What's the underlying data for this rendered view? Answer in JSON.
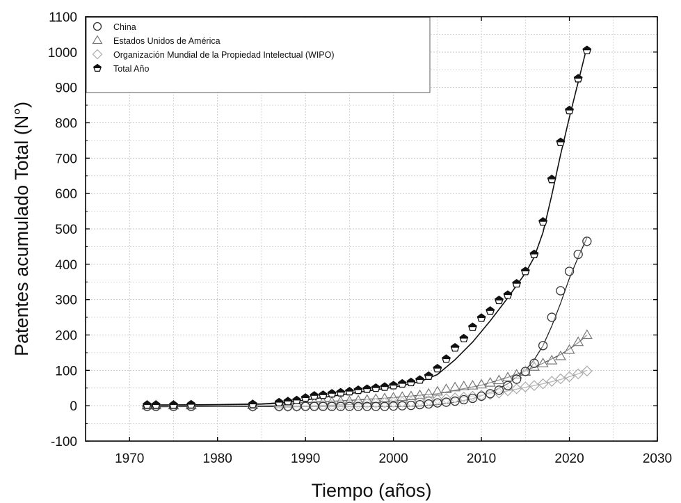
{
  "chart_data": {
    "type": "scatter",
    "xlabel": "Tiempo (años)",
    "ylabel": "Patentes acumulado Total (N°)",
    "xlim": [
      1965,
      2030
    ],
    "ylim": [
      -100,
      1100
    ],
    "xticks": [
      1970,
      1980,
      1990,
      2000,
      2010,
      2020,
      2030
    ],
    "yticks": [
      -100,
      0,
      100,
      200,
      300,
      400,
      500,
      600,
      700,
      800,
      900,
      1000,
      1100
    ],
    "grid": true,
    "legend_position": "top-left",
    "series": [
      {
        "name": "China",
        "marker": "circle",
        "x": [
          1972,
          1973,
          1975,
          1977,
          1984,
          1987,
          1988,
          1989,
          1990,
          1991,
          1992,
          1993,
          1994,
          1995,
          1996,
          1997,
          1998,
          1999,
          2000,
          2001,
          2002,
          2003,
          2004,
          2005,
          2006,
          2007,
          2008,
          2009,
          2010,
          2011,
          2012,
          2013,
          2014,
          2015,
          2016,
          2017,
          2018,
          2019,
          2020,
          2021,
          2022
        ],
        "y": [
          -2,
          -2,
          -2,
          -2,
          -2,
          -2,
          -2,
          -2,
          -2,
          -2,
          -2,
          -2,
          -2,
          -2,
          -2,
          -2,
          -2,
          -2,
          -1,
          0,
          1,
          3,
          5,
          8,
          10,
          13,
          17,
          21,
          27,
          34,
          44,
          57,
          75,
          97,
          120,
          170,
          250,
          325,
          380,
          428,
          465
        ]
      },
      {
        "name": "Estados Unidos de América",
        "marker": "triangle",
        "x": [
          1972,
          1973,
          1975,
          1977,
          1984,
          1987,
          1988,
          1989,
          1990,
          1991,
          1992,
          1993,
          1994,
          1995,
          1996,
          1997,
          1998,
          1999,
          2000,
          2001,
          2002,
          2003,
          2004,
          2005,
          2006,
          2007,
          2008,
          2009,
          2010,
          2011,
          2012,
          2013,
          2014,
          2015,
          2016,
          2017,
          2018,
          2019,
          2020,
          2021,
          2022
        ],
        "y": [
          1,
          1,
          1,
          1,
          2,
          4,
          6,
          7,
          8,
          9,
          10,
          11,
          12,
          13,
          15,
          17,
          19,
          21,
          23,
          25,
          27,
          30,
          34,
          40,
          47,
          52,
          55,
          57,
          60,
          65,
          72,
          80,
          88,
          96,
          110,
          120,
          128,
          140,
          158,
          180,
          200
        ]
      },
      {
        "name": "Organización Mundial de la Propiedad Intelectual (WIPO)",
        "marker": "diamond",
        "x": [
          1972,
          1973,
          1975,
          1977,
          1984,
          1987,
          1988,
          1989,
          1990,
          1991,
          1992,
          1993,
          1994,
          1995,
          1996,
          1997,
          1998,
          1999,
          2000,
          2001,
          2002,
          2003,
          2004,
          2005,
          2006,
          2007,
          2008,
          2009,
          2010,
          2011,
          2012,
          2013,
          2014,
          2015,
          2016,
          2017,
          2018,
          2019,
          2020,
          2021,
          2022
        ],
        "y": [
          -1,
          -1,
          -1,
          -1,
          -2,
          -2,
          -2,
          -2,
          -1,
          0,
          1,
          2,
          3,
          4,
          5,
          6,
          7,
          8,
          9,
          10,
          11,
          13,
          15,
          18,
          20,
          22,
          24,
          27,
          30,
          32,
          36,
          42,
          48,
          53,
          57,
          62,
          69,
          76,
          82,
          90,
          98
        ]
      },
      {
        "name": "Total Año",
        "marker": "pentagon-half",
        "x": [
          1972,
          1973,
          1975,
          1977,
          1984,
          1987,
          1988,
          1989,
          1990,
          1991,
          1992,
          1993,
          1994,
          1995,
          1996,
          1997,
          1998,
          1999,
          2000,
          2001,
          2002,
          2003,
          2004,
          2005,
          2006,
          2007,
          2008,
          2009,
          2010,
          2011,
          2012,
          2013,
          2014,
          2015,
          2016,
          2017,
          2018,
          2019,
          2020,
          2021,
          2022
        ],
        "y": [
          2,
          2,
          2,
          3,
          4,
          9,
          12,
          15,
          22,
          28,
          30,
          34,
          37,
          40,
          44,
          47,
          50,
          53,
          57,
          62,
          66,
          73,
          84,
          105,
          132,
          164,
          190,
          222,
          248,
          268,
          298,
          313,
          345,
          380,
          428,
          520,
          640,
          745,
          835,
          925,
          1005
        ]
      }
    ],
    "fit_lines": [
      {
        "name": "",
        "x": [
          1972,
          1980,
          1985,
          1990,
          1995,
          2000,
          2003,
          2005,
          2007,
          2009,
          2011,
          2013,
          2015,
          2016,
          2017,
          2018,
          2019,
          2020,
          2021,
          2022
        ],
        "y": [
          -3,
          -2,
          -2,
          -2,
          -2,
          -2,
          -1,
          3,
          10,
          20,
          37,
          62,
          100,
          130,
          170,
          225,
          290,
          360,
          420,
          475
        ]
      },
      {
        "name": "",
        "x": [
          1972,
          1980,
          1985,
          1990,
          1995,
          2000,
          2005,
          2010,
          2013,
          2015,
          2017,
          2019,
          2020,
          2021,
          2022
        ],
        "y": [
          0,
          2,
          4,
          9,
          15,
          23,
          34,
          58,
          80,
          98,
          120,
          145,
          160,
          178,
          200
        ]
      },
      {
        "name": "",
        "x": [
          1972,
          1980,
          1985,
          1990,
          1995,
          2000,
          2005,
          2010,
          2013,
          2015,
          2017,
          2019,
          2020,
          2021,
          2022
        ],
        "y": [
          -1,
          -1,
          0,
          1,
          4,
          8,
          16,
          30,
          42,
          52,
          62,
          74,
          82,
          90,
          100
        ]
      },
      {
        "name": "",
        "x": [
          1972,
          1980,
          1985,
          1988,
          1990,
          1993,
          1996,
          2000,
          2003,
          2005,
          2007,
          2009,
          2011,
          2013,
          2015,
          2016,
          2017,
          2018,
          2019,
          2020,
          2021,
          2022
        ],
        "y": [
          2,
          3,
          5,
          10,
          16,
          27,
          38,
          52,
          68,
          88,
          130,
          180,
          240,
          305,
          375,
          420,
          490,
          595,
          710,
          815,
          915,
          1015
        ]
      }
    ]
  },
  "colors": {
    "marker_stroke": "#222222",
    "china": "#333333",
    "usa": "#777777",
    "wipo": "#aaaaaa",
    "total": "#111111",
    "grid": "#c8c8c8",
    "axis": "#000000"
  }
}
